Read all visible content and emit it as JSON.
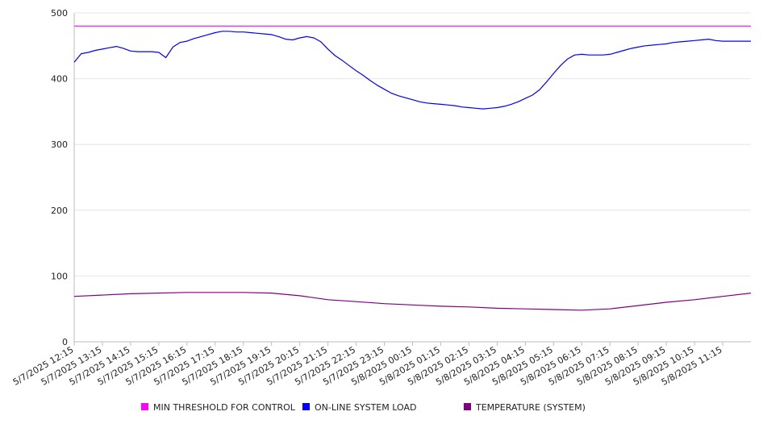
{
  "chart_data": {
    "type": "line",
    "title": "",
    "xlabel": "",
    "ylabel": "",
    "ylim": [
      0,
      500
    ],
    "yticks": [
      0,
      100,
      200,
      300,
      400,
      500
    ],
    "grid": true,
    "legend_position": "bottom",
    "x_tick_labels": [
      "5/7/2025 12:15",
      "5/7/2025 13:15",
      "5/7/2025 14:15",
      "5/7/2025 15:15",
      "5/7/2025 16:15",
      "5/7/2025 17:15",
      "5/7/2025 18:15",
      "5/7/2025 19:15",
      "5/7/2025 20:15",
      "5/7/2025 21:15",
      "5/7/2025 22:15",
      "5/7/2025 23:15",
      "5/8/2025 00:15",
      "5/8/2025 01:15",
      "5/8/2025 02:15",
      "5/8/2025 03:15",
      "5/8/2025 04:15",
      "5/8/2025 05:15",
      "5/8/2025 06:15",
      "5/8/2025 07:15",
      "5/8/2025 08:15",
      "5/8/2025 09:15",
      "5/8/2025 10:15",
      "5/8/2025 11:15"
    ],
    "x_start": "5/7/2025 12:15",
    "x_end": "5/8/2025 12:15",
    "series": [
      {
        "name": "MIN THRESHOLD FOR CONTROL",
        "color": "#ff00ff",
        "x": [
          "5/7/2025 12:15",
          "5/8/2025 12:15"
        ],
        "y": [
          480,
          480
        ]
      },
      {
        "name": "ON-LINE SYSTEM LOAD",
        "color": "#0000ff",
        "x": [
          "5/7/2025 12:15",
          "5/7/2025 12:30",
          "5/7/2025 12:45",
          "5/7/2025 13:00",
          "5/7/2025 13:15",
          "5/7/2025 13:30",
          "5/7/2025 13:45",
          "5/7/2025 14:00",
          "5/7/2025 14:15",
          "5/7/2025 14:30",
          "5/7/2025 14:45",
          "5/7/2025 15:00",
          "5/7/2025 15:15",
          "5/7/2025 15:30",
          "5/7/2025 15:45",
          "5/7/2025 16:00",
          "5/7/2025 16:15",
          "5/7/2025 16:30",
          "5/7/2025 16:45",
          "5/7/2025 17:00",
          "5/7/2025 17:15",
          "5/7/2025 17:30",
          "5/7/2025 17:45",
          "5/7/2025 18:00",
          "5/7/2025 18:15",
          "5/7/2025 18:30",
          "5/7/2025 18:45",
          "5/7/2025 19:00",
          "5/7/2025 19:15",
          "5/7/2025 19:30",
          "5/7/2025 19:45",
          "5/7/2025 20:00",
          "5/7/2025 20:15",
          "5/7/2025 20:30",
          "5/7/2025 20:45",
          "5/7/2025 21:00",
          "5/7/2025 21:15",
          "5/7/2025 21:30",
          "5/7/2025 21:45",
          "5/7/2025 22:00",
          "5/7/2025 22:15",
          "5/7/2025 22:30",
          "5/7/2025 22:45",
          "5/7/2025 23:00",
          "5/7/2025 23:15",
          "5/7/2025 23:30",
          "5/7/2025 23:45",
          "5/8/2025 00:00",
          "5/8/2025 00:15",
          "5/8/2025 00:30",
          "5/8/2025 00:45",
          "5/8/2025 01:00",
          "5/8/2025 01:15",
          "5/8/2025 01:30",
          "5/8/2025 01:45",
          "5/8/2025 02:00",
          "5/8/2025 02:15",
          "5/8/2025 02:30",
          "5/8/2025 02:45",
          "5/8/2025 03:00",
          "5/8/2025 03:15",
          "5/8/2025 03:30",
          "5/8/2025 03:45",
          "5/8/2025 04:00",
          "5/8/2025 04:15",
          "5/8/2025 04:30",
          "5/8/2025 04:45",
          "5/8/2025 05:00",
          "5/8/2025 05:15",
          "5/8/2025 05:30",
          "5/8/2025 05:45",
          "5/8/2025 06:00",
          "5/8/2025 06:15",
          "5/8/2025 06:30",
          "5/8/2025 06:45",
          "5/8/2025 07:00",
          "5/8/2025 07:15",
          "5/8/2025 07:30",
          "5/8/2025 07:45",
          "5/8/2025 08:00",
          "5/8/2025 08:15",
          "5/8/2025 08:30",
          "5/8/2025 08:45",
          "5/8/2025 09:00",
          "5/8/2025 09:15",
          "5/8/2025 09:30",
          "5/8/2025 09:45",
          "5/8/2025 10:00",
          "5/8/2025 10:15",
          "5/8/2025 10:30",
          "5/8/2025 10:45",
          "5/8/2025 11:00",
          "5/8/2025 11:15",
          "5/8/2025 11:30",
          "5/8/2025 11:45",
          "5/8/2025 12:00",
          "5/8/2025 12:15"
        ],
        "y": [
          425,
          438,
          440,
          443,
          445,
          447,
          449,
          446,
          442,
          441,
          441,
          441,
          440,
          432,
          448,
          455,
          457,
          461,
          464,
          467,
          470,
          472,
          472,
          471,
          471,
          470,
          469,
          468,
          467,
          464,
          460,
          459,
          462,
          464,
          462,
          456,
          445,
          435,
          428,
          420,
          412,
          405,
          397,
          390,
          384,
          378,
          374,
          371,
          368,
          365,
          363,
          362,
          361,
          360,
          359,
          357,
          356,
          355,
          354,
          355,
          356,
          358,
          361,
          365,
          370,
          375,
          383,
          395,
          408,
          420,
          430,
          436,
          437,
          436,
          436,
          436,
          437,
          440,
          443,
          446,
          448,
          450,
          451,
          452,
          453,
          455,
          456,
          457,
          458,
          459,
          460,
          458,
          457,
          457,
          457,
          457,
          457
        ]
      },
      {
        "name": "TEMPERATURE (SYSTEM)",
        "color": "#800080",
        "x": [
          "5/7/2025 12:15",
          "5/7/2025 14:15",
          "5/7/2025 16:15",
          "5/7/2025 18:15",
          "5/7/2025 19:15",
          "5/7/2025 20:15",
          "5/7/2025 21:15",
          "5/7/2025 22:15",
          "5/7/2025 23:15",
          "5/8/2025 00:15",
          "5/8/2025 01:15",
          "5/8/2025 02:15",
          "5/8/2025 03:15",
          "5/8/2025 04:15",
          "5/8/2025 05:15",
          "5/8/2025 06:15",
          "5/8/2025 07:15",
          "5/8/2025 08:15",
          "5/8/2025 09:15",
          "5/8/2025 10:15",
          "5/8/2025 11:15",
          "5/8/2025 12:15"
        ],
        "y": [
          69,
          73,
          75,
          75,
          74,
          70,
          64,
          61,
          58,
          56,
          54,
          53,
          51,
          50,
          49,
          48,
          50,
          55,
          60,
          64,
          69,
          74
        ]
      }
    ]
  }
}
